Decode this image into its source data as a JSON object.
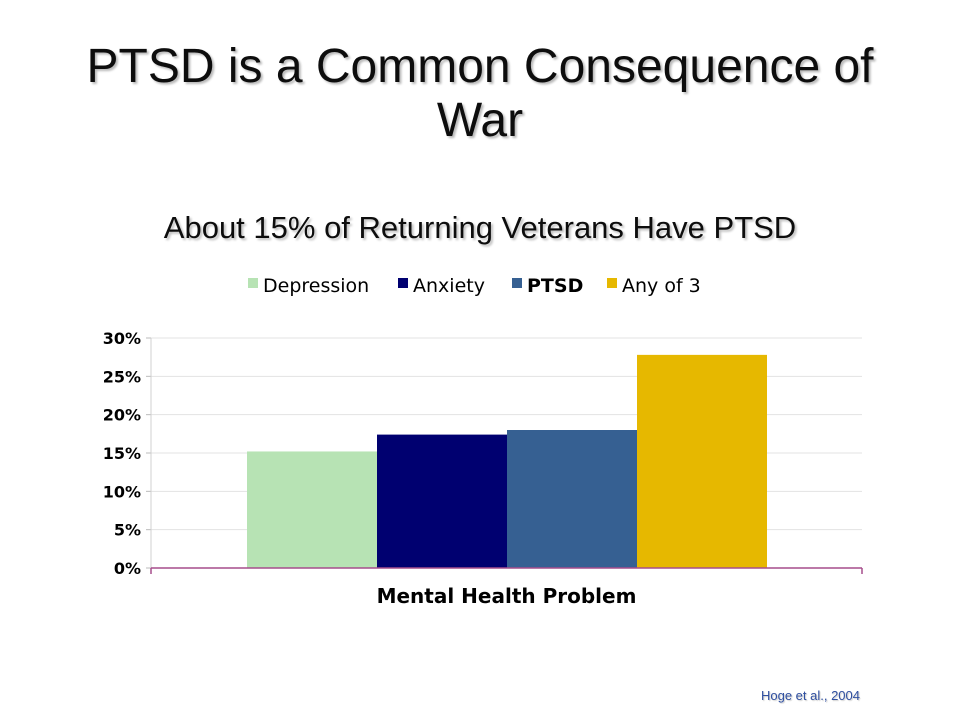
{
  "slide": {
    "title": "PTSD is a Common Consequence of War",
    "subtitle": "About 15% of Returning Veterans Have PTSD",
    "citation": "Hoge et al., 2004"
  },
  "chart_data": {
    "type": "bar",
    "xlabel": "Mental Health Problem",
    "ylabel": "",
    "ylim": [
      0,
      30
    ],
    "y_ticks": [
      0,
      5,
      10,
      15,
      20,
      25,
      30
    ],
    "y_tick_format": "%",
    "grid": true,
    "legend_placement": "top-center",
    "series": [
      {
        "name": "Depression",
        "values": [
          15.2
        ],
        "color": "#b7e3b4"
      },
      {
        "name": "Anxiety",
        "values": [
          17.4
        ],
        "color": "#000070"
      },
      {
        "name": "PTSD",
        "values": [
          18.0
        ],
        "color": "#366092"
      },
      {
        "name": "Any of 3",
        "values": [
          27.8
        ],
        "color": "#e6b800"
      }
    ]
  }
}
